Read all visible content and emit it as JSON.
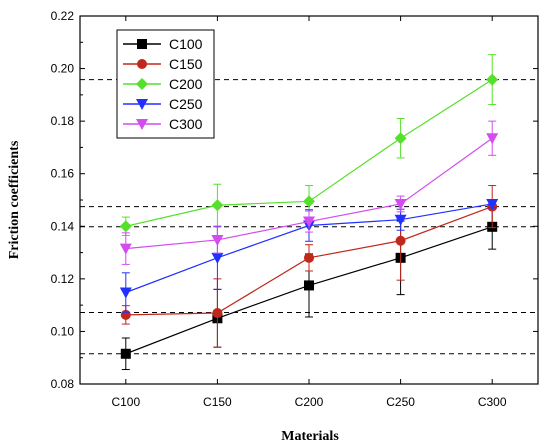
{
  "chart_data": {
    "type": "line",
    "xlabel": "Materials",
    "ylabel": "Friction coefficients",
    "categories": [
      "C100",
      "C150",
      "C200",
      "C250",
      "C300"
    ],
    "ylim": [
      0.08,
      0.22
    ],
    "yticks": [
      "0.08",
      "0.10",
      "0.12",
      "0.14",
      "0.16",
      "0.18",
      "0.20",
      "0.22"
    ],
    "legend_position": "top-left",
    "grid": false,
    "series": [
      {
        "name": "C100",
        "color": "#000000",
        "marker": "square",
        "values": [
          0.0915,
          0.105,
          0.1175,
          0.128,
          0.1398
        ],
        "errors": [
          0.006,
          0.011,
          0.012,
          0.014,
          0.0085
        ]
      },
      {
        "name": "C150",
        "color": "#c0281c",
        "marker": "circle",
        "values": [
          0.1063,
          0.107,
          0.128,
          0.1345,
          0.1475
        ],
        "errors": [
          0.0035,
          0.013,
          0.005,
          0.015,
          0.008
        ]
      },
      {
        "name": "C200",
        "color": "#55e02c",
        "marker": "diamond",
        "values": [
          0.14,
          0.148,
          0.1495,
          0.1735,
          0.1958
        ],
        "errors": [
          0.0035,
          0.008,
          0.006,
          0.0075,
          0.0095
        ]
      },
      {
        "name": "C250",
        "color": "#2130ff",
        "marker": "triangle-down",
        "values": [
          0.1148,
          0.128,
          0.1403,
          0.1425,
          0.1485
        ],
        "errors": [
          0.0075,
          0.012,
          0.006,
          0.004,
          0.0015
        ]
      },
      {
        "name": "C300",
        "color": "#d34cf0",
        "marker": "triangle-down",
        "values": [
          0.1315,
          0.1348,
          0.1418,
          0.1485,
          0.1735
        ],
        "errors": [
          0.006,
          0.005,
          0.004,
          0.003,
          0.0065
        ]
      }
    ],
    "reference_lines": [
      0.0915,
      0.1072,
      0.1398,
      0.1475,
      0.1958
    ]
  }
}
